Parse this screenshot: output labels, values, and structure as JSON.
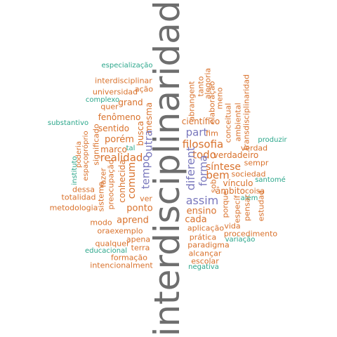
{
  "colors": {
    "orange": "#d9712b",
    "green": "#2aa68a",
    "purple": "#7a78bd",
    "gray": "#6e6e6e"
  },
  "words": [
    {
      "text": "interdisciplinaridad",
      "color": "gray"
    },
    {
      "text": "especialização",
      "color": "green"
    },
    {
      "text": "interdisciplinar",
      "color": "orange"
    },
    {
      "text": "ação",
      "color": "orange"
    },
    {
      "text": "universidad",
      "color": "orange"
    },
    {
      "text": "complexo",
      "color": "green"
    },
    {
      "text": "grand",
      "color": "orange"
    },
    {
      "text": "quer",
      "color": "orange"
    },
    {
      "text": "fenômeno",
      "color": "orange"
    },
    {
      "text": "sentido",
      "color": "orange"
    },
    {
      "text": "substantivo",
      "color": "green"
    },
    {
      "text": "poderia",
      "color": "orange"
    },
    {
      "text": "espaçopróprio",
      "color": "orange"
    },
    {
      "text": "significado",
      "color": "orange"
    },
    {
      "text": "porém",
      "color": "orange"
    },
    {
      "text": "marco",
      "color": "orange"
    },
    {
      "text": "tal",
      "color": "green"
    },
    {
      "text": "realidad",
      "color": "orange"
    },
    {
      "text": "busca",
      "color": "orange"
    },
    {
      "text": "mesma",
      "color": "orange"
    },
    {
      "text": "outra",
      "color": "purple"
    },
    {
      "text": "tempo",
      "color": "purple"
    },
    {
      "text": "comum",
      "color": "orange"
    },
    {
      "text": "fazer",
      "color": "orange"
    },
    {
      "text": "instituto",
      "color": "green"
    },
    {
      "text": "totalidad",
      "color": "orange"
    },
    {
      "text": "dessa",
      "color": "orange"
    },
    {
      "text": "metodologia",
      "color": "orange"
    },
    {
      "text": "sistema",
      "color": "orange"
    },
    {
      "text": "preocupação",
      "color": "orange"
    },
    {
      "text": "conhecida",
      "color": "orange"
    },
    {
      "text": "ver",
      "color": "orange"
    },
    {
      "text": "ponto",
      "color": "orange"
    },
    {
      "text": "aprend",
      "color": "orange"
    },
    {
      "text": "modo",
      "color": "orange"
    },
    {
      "text": "oraexemplo",
      "color": "orange"
    },
    {
      "text": "apena",
      "color": "orange"
    },
    {
      "text": "qualquer",
      "color": "orange"
    },
    {
      "text": "terra",
      "color": "orange"
    },
    {
      "text": "educacional",
      "color": "green"
    },
    {
      "text": "formação",
      "color": "orange"
    },
    {
      "text": "intencionalment",
      "color": "orange"
    },
    {
      "text": "abrangent",
      "color": "orange"
    },
    {
      "text": "tanto",
      "color": "orange"
    },
    {
      "text": "alegoria",
      "color": "orange"
    },
    {
      "text": "elaboração",
      "color": "orange"
    },
    {
      "text": "meno",
      "color": "orange"
    },
    {
      "text": "científico",
      "color": "orange"
    },
    {
      "text": "part",
      "color": "purple"
    },
    {
      "text": "fim",
      "color": "orange"
    },
    {
      "text": "filosofia",
      "color": "orange"
    },
    {
      "text": "conceitual",
      "color": "orange"
    },
    {
      "text": "ambiental",
      "color": "orange"
    },
    {
      "text": "transdisciplinaridad",
      "color": "orange"
    },
    {
      "text": "produzir",
      "color": "green"
    },
    {
      "text": "verdad",
      "color": "orange"
    },
    {
      "text": "todo",
      "color": "orange"
    },
    {
      "text": "verdadeiro",
      "color": "orange"
    },
    {
      "text": "diferent",
      "color": "purple"
    },
    {
      "text": "forma",
      "color": "purple"
    },
    {
      "text": "síntese",
      "color": "orange"
    },
    {
      "text": "sempr",
      "color": "orange"
    },
    {
      "text": "bem",
      "color": "orange"
    },
    {
      "text": "sociedad",
      "color": "orange"
    },
    {
      "text": "sob",
      "color": "orange"
    },
    {
      "text": "vínculo",
      "color": "orange"
    },
    {
      "text": "santomé",
      "color": "green"
    },
    {
      "text": "âmbito",
      "color": "orange"
    },
    {
      "text": "coisa",
      "color": "orange"
    },
    {
      "text": "assim",
      "color": "purple"
    },
    {
      "text": "além",
      "color": "green"
    },
    {
      "text": "ensino",
      "color": "orange"
    },
    {
      "text": "porque",
      "color": "orange"
    },
    {
      "text": "específ",
      "color": "orange"
    },
    {
      "text": "pensar",
      "color": "orange"
    },
    {
      "text": "estudad",
      "color": "orange"
    },
    {
      "text": "cada",
      "color": "orange"
    },
    {
      "text": "aplicação",
      "color": "orange"
    },
    {
      "text": "vida",
      "color": "orange"
    },
    {
      "text": "procedimento",
      "color": "orange"
    },
    {
      "text": "prática",
      "color": "orange"
    },
    {
      "text": "variação",
      "color": "green"
    },
    {
      "text": "paradigma",
      "color": "orange"
    },
    {
      "text": "alcançar",
      "color": "orange"
    },
    {
      "text": "escolar",
      "color": "orange"
    },
    {
      "text": "negativa",
      "color": "green"
    }
  ]
}
